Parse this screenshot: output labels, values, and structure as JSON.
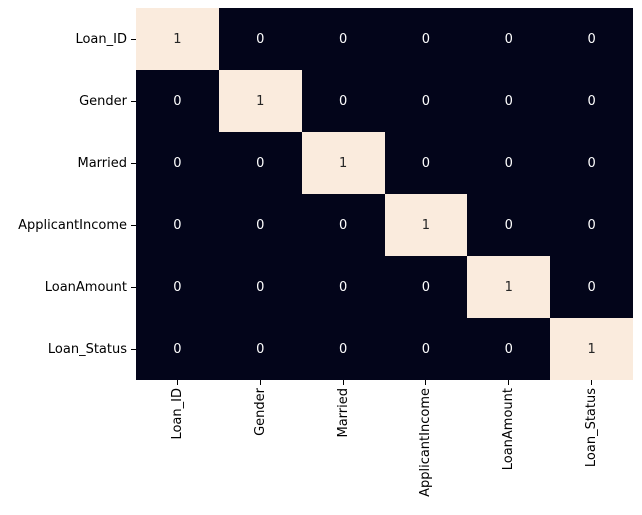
{
  "figure": {
    "background": "#ffffff"
  },
  "chart_data": {
    "type": "heatmap",
    "title": "",
    "xlabel": "",
    "ylabel": "",
    "categories": [
      "Loan_ID",
      "Gender",
      "Married",
      "ApplicantIncome",
      "LoanAmount",
      "Loan_Status"
    ],
    "matrix": [
      [
        1,
        0,
        0,
        0,
        0,
        0
      ],
      [
        0,
        1,
        0,
        0,
        0,
        0
      ],
      [
        0,
        0,
        1,
        0,
        0,
        0
      ],
      [
        0,
        0,
        0,
        1,
        0,
        0
      ],
      [
        0,
        0,
        0,
        0,
        1,
        0
      ],
      [
        0,
        0,
        0,
        0,
        0,
        1
      ]
    ],
    "value_range": [
      0,
      1
    ],
    "annotations_on": true,
    "grid": "off",
    "legend": "none",
    "x_tick_rotation_deg": 90,
    "colors": {
      "cell_low": "#03051a",
      "cell_high": "#faebdd",
      "annot_on_low": "#ffffff",
      "annot_on_high": "#262626",
      "axis_text": "#000000",
      "tick_mark": "#000000"
    }
  }
}
